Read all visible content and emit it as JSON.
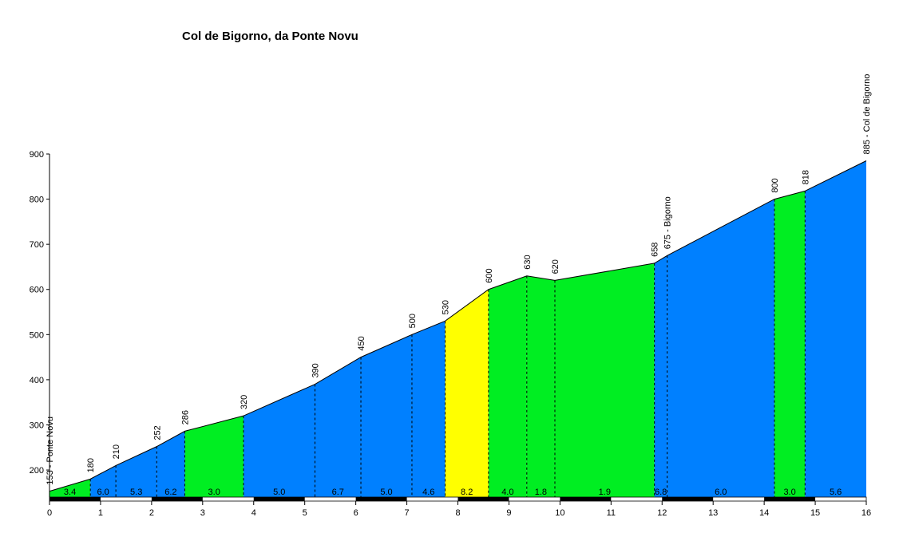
{
  "chart_data": {
    "type": "area",
    "title": "Col de Bigorno, da Ponte Novu",
    "xlabel": "",
    "ylabel": "",
    "xlim": [
      0,
      16
    ],
    "ylim": [
      140,
      900
    ],
    "grid": false,
    "legend": "none",
    "x_ticks": [
      "0",
      "1",
      "2",
      "3",
      "4",
      "5",
      "6",
      "7",
      "8",
      "9",
      "10",
      "11",
      "12",
      "13",
      "14",
      "15",
      "16"
    ],
    "y_ticks": [
      "200",
      "300",
      "400",
      "500",
      "600",
      "700",
      "800",
      "900"
    ],
    "profile": [
      {
        "x": 0.0,
        "y": 153,
        "label": "153 - Ponte Novu",
        "marker": false
      },
      {
        "x": 0.8,
        "y": 180,
        "label": "180",
        "marker": true
      },
      {
        "x": 1.3,
        "y": 210,
        "label": "210",
        "marker": true
      },
      {
        "x": 2.1,
        "y": 252,
        "label": "252",
        "marker": true
      },
      {
        "x": 2.65,
        "y": 286,
        "label": "286",
        "marker": true
      },
      {
        "x": 3.8,
        "y": 320,
        "label": "320",
        "marker": true
      },
      {
        "x": 5.2,
        "y": 390,
        "label": "390",
        "marker": true
      },
      {
        "x": 6.1,
        "y": 450,
        "label": "450",
        "marker": true
      },
      {
        "x": 7.1,
        "y": 500,
        "label": "500",
        "marker": true
      },
      {
        "x": 7.75,
        "y": 530,
        "label": "530",
        "marker": true
      },
      {
        "x": 8.6,
        "y": 600,
        "label": "600",
        "marker": true
      },
      {
        "x": 9.35,
        "y": 630,
        "label": "630",
        "marker": true
      },
      {
        "x": 9.9,
        "y": 620,
        "label": "620",
        "marker": true
      },
      {
        "x": 11.85,
        "y": 658,
        "label": "658",
        "marker": true
      },
      {
        "x": 12.1,
        "y": 675,
        "label": "675 - Bigorno",
        "marker": true
      },
      {
        "x": 14.2,
        "y": 800,
        "label": "800",
        "marker": true
      },
      {
        "x": 14.8,
        "y": 818,
        "label": "818",
        "marker": true
      },
      {
        "x": 16.0,
        "y": 885,
        "label": "885 - Col de Bigorno",
        "marker": false
      }
    ],
    "segments": [
      {
        "from": 0.0,
        "to": 0.8,
        "gradient": "3.4",
        "color": "#00ee22"
      },
      {
        "from": 0.8,
        "to": 1.3,
        "gradient": "6.0",
        "color": "#0080ff"
      },
      {
        "from": 1.3,
        "to": 2.1,
        "gradient": "5.3",
        "color": "#0080ff"
      },
      {
        "from": 2.1,
        "to": 2.65,
        "gradient": "6.2",
        "color": "#0080ff"
      },
      {
        "from": 2.65,
        "to": 3.8,
        "gradient": "3.0",
        "color": "#00ee22"
      },
      {
        "from": 3.8,
        "to": 5.2,
        "gradient": "5.0",
        "color": "#0080ff"
      },
      {
        "from": 5.2,
        "to": 6.1,
        "gradient": "6.7",
        "color": "#0080ff"
      },
      {
        "from": 6.1,
        "to": 7.1,
        "gradient": "5.0",
        "color": "#0080ff"
      },
      {
        "from": 7.1,
        "to": 7.75,
        "gradient": "4.6",
        "color": "#0080ff"
      },
      {
        "from": 7.75,
        "to": 8.6,
        "gradient": "8.2",
        "color": "#ffff00"
      },
      {
        "from": 8.6,
        "to": 9.35,
        "gradient": "4.0",
        "color": "#00ee22"
      },
      {
        "from": 9.35,
        "to": 9.9,
        "gradient": "1.8",
        "color": "#00ee22"
      },
      {
        "from": 9.9,
        "to": 11.85,
        "gradient": "1.9",
        "color": "#00ee22"
      },
      {
        "from": 11.85,
        "to": 12.1,
        "gradient": "6.8",
        "color": "#0080ff"
      },
      {
        "from": 12.1,
        "to": 14.2,
        "gradient": "6.0",
        "color": "#0080ff"
      },
      {
        "from": 14.2,
        "to": 14.8,
        "gradient": "3.0",
        "color": "#00ee22"
      },
      {
        "from": 14.8,
        "to": 16.0,
        "gradient": "5.6",
        "color": "#0080ff"
      }
    ]
  }
}
